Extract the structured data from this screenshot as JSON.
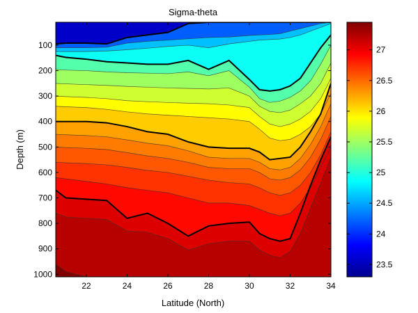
{
  "chart_data": {
    "type": "contour",
    "title": "Sigma-theta",
    "xlabel": "Latitude (North)",
    "ylabel": "Depth (m)",
    "xlim": [
      20.5,
      34
    ],
    "ylim": [
      1010,
      10
    ],
    "x_ticks": [
      "22",
      "24",
      "26",
      "28",
      "30",
      "32",
      "34"
    ],
    "y_ticks": [
      "100",
      "200",
      "300",
      "400",
      "500",
      "600",
      "700",
      "800",
      "900",
      "1000"
    ],
    "colorbar": {
      "range": [
        23.3,
        27.45
      ],
      "ticks": [
        "23.5",
        "24",
        "24.5",
        "25",
        "25.5",
        "26",
        "26.5",
        "27"
      ],
      "colormap": "jet"
    },
    "latitudes": [
      20.5,
      21,
      22,
      23,
      24,
      25,
      26,
      27,
      28,
      29,
      30,
      30.5,
      31,
      31.5,
      32,
      32.5,
      33,
      33.5,
      34
    ],
    "isopycnals": [
      {
        "level": 24.0,
        "bold": true,
        "depths": [
          95,
          92,
          92,
          95,
          70,
          60,
          50,
          15,
          10,
          10,
          10,
          10,
          10,
          10,
          10,
          10,
          10,
          10,
          10
        ]
      },
      {
        "level": 24.4,
        "bold": false,
        "depths": [
          110,
          110,
          110,
          108,
          92,
          85,
          80,
          75,
          70,
          68,
          62,
          60,
          58,
          55,
          45,
          35,
          25,
          15,
          10
        ]
      },
      {
        "level": 24.8,
        "bold": false,
        "depths": [
          125,
          125,
          125,
          123,
          118,
          112,
          105,
          100,
          110,
          95,
          85,
          80,
          78,
          76,
          70,
          60,
          45,
          30,
          15
        ]
      },
      {
        "level": 25.0,
        "bold": true,
        "depths": [
          140,
          148,
          155,
          165,
          170,
          175,
          175,
          160,
          195,
          160,
          235,
          275,
          280,
          275,
          260,
          230,
          170,
          110,
          60
        ]
      },
      {
        "level": 25.4,
        "bold": false,
        "depths": [
          195,
          198,
          200,
          205,
          208,
          210,
          212,
          205,
          220,
          200,
          265,
          310,
          325,
          320,
          305,
          280,
          240,
          175,
          100
        ]
      },
      {
        "level": 25.6,
        "bold": false,
        "depths": [
          250,
          252,
          255,
          258,
          262,
          265,
          268,
          270,
          272,
          268,
          300,
          340,
          360,
          365,
          355,
          330,
          300,
          250,
          170
        ]
      },
      {
        "level": 25.8,
        "bold": false,
        "depths": [
          300,
          302,
          305,
          310,
          318,
          322,
          325,
          328,
          330,
          335,
          345,
          380,
          410,
          420,
          410,
          390,
          360,
          310,
          230
        ]
      },
      {
        "level": 26.0,
        "bold": false,
        "depths": [
          340,
          342,
          345,
          352,
          362,
          370,
          375,
          380,
          385,
          390,
          400,
          430,
          465,
          475,
          470,
          450,
          420,
          370,
          290
        ]
      },
      {
        "level": 26.2,
        "bold": true,
        "depths": [
          400,
          400,
          400,
          405,
          420,
          440,
          450,
          480,
          500,
          505,
          505,
          520,
          550,
          545,
          540,
          500,
          440,
          370,
          250
        ]
      },
      {
        "level": 26.35,
        "bold": false,
        "depths": [
          450,
          452,
          455,
          460,
          472,
          485,
          495,
          515,
          540,
          545,
          545,
          560,
          585,
          590,
          580,
          545,
          490,
          420,
          330
        ]
      },
      {
        "level": 26.5,
        "bold": false,
        "depths": [
          500,
          502,
          505,
          510,
          522,
          535,
          545,
          560,
          580,
          585,
          585,
          600,
          625,
          630,
          620,
          590,
          540,
          470,
          380
        ]
      },
      {
        "level": 26.65,
        "bold": false,
        "depths": [
          560,
          562,
          565,
          570,
          580,
          592,
          600,
          615,
          630,
          640,
          645,
          660,
          680,
          690,
          680,
          650,
          600,
          530,
          440
        ]
      },
      {
        "level": 26.8,
        "bold": false,
        "depths": [
          620,
          625,
          635,
          645,
          660,
          670,
          680,
          700,
          720,
          720,
          730,
          745,
          760,
          770,
          760,
          720,
          660,
          580,
          500
        ]
      },
      {
        "level": 27.0,
        "bold": true,
        "depths": [
          670,
          700,
          705,
          710,
          780,
          760,
          800,
          850,
          810,
          800,
          795,
          840,
          860,
          870,
          860,
          760,
          650,
          550,
          460
        ]
      },
      {
        "level": 27.15,
        "bold": false,
        "depths": [
          760,
          775,
          780,
          785,
          830,
          835,
          860,
          905,
          880,
          870,
          870,
          905,
          925,
          935,
          910,
          840,
          740,
          640,
          540
        ]
      },
      {
        "level": 27.3,
        "bold": false,
        "depths": [
          960,
          990,
          1010,
          1010,
          1010,
          1010,
          1010,
          1010,
          1010,
          1010,
          1010,
          1010,
          1010,
          1010,
          1010,
          1010,
          1010,
          1010,
          1010
        ]
      }
    ]
  }
}
